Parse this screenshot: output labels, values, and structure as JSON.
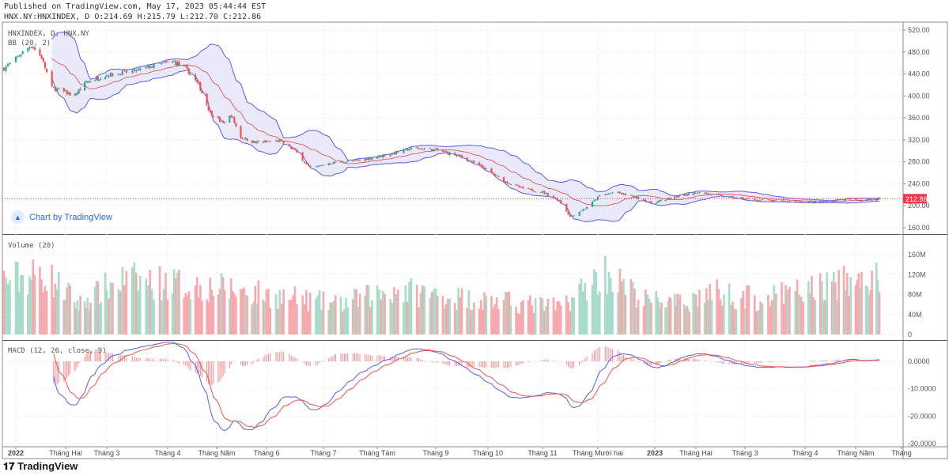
{
  "header": {
    "published": "Published on TradingView.com, May 17, 2023 05:44:44 EST",
    "ohlc": "HNX.NY:HNXINDEX, D O:214.69 H:215.79 L:212.70 C:212.86"
  },
  "legend": {
    "symbol": "HNXINDEX, D, HNX.NY",
    "bb": "BB (20, 2)",
    "volume": "Volume (20)",
    "macd": "MACD (12, 26, close, 9)"
  },
  "badge": "Chart by TradingView",
  "footer_logo": "TradingView",
  "colors": {
    "up": "#26a69a",
    "down": "#ef5350",
    "bb_band": "#5b5bf0",
    "bb_basis": "#e0454b",
    "bb_fill": "#e4e4f7",
    "macd": "#5b5bf0",
    "signal": "#ef5350",
    "last_price": "#f23645"
  },
  "chart_data": {
    "type": "candlestick",
    "last_price": "212.86",
    "price_axis": {
      "ylim": [
        150,
        530
      ],
      "ticks": [
        "520.00",
        "480.00",
        "440.00",
        "400.00",
        "360.00",
        "320.00",
        "280.00",
        "240.00",
        "200.00",
        "160.00"
      ]
    },
    "volume_axis": {
      "ylim": [
        0,
        175
      ],
      "ticks": [
        "160M",
        "120M",
        "80M",
        "40M",
        "0"
      ]
    },
    "macd_axis": {
      "ylim": [
        -31,
        7
      ],
      "ticks": [
        "0.0000",
        "-10.0000",
        "-20.0000",
        "-30.0000"
      ]
    },
    "x_ticks": [
      "2022",
      "Tháng Hai",
      "Tháng 3",
      "Tháng 4",
      "Tháng Năm",
      "Tháng 6",
      "Tháng 7",
      "Tháng Tám",
      "Tháng 9",
      "Tháng 10",
      "Tháng 11",
      "Tháng Mười hai",
      "2023",
      "Tháng Hai",
      "Tháng 3",
      "Tháng 4",
      "Tháng Năm",
      "Tháng"
    ],
    "close_keypoints": [
      [
        "2021-12-28",
        450
      ],
      [
        "2022-01-07",
        480
      ],
      [
        "2022-01-12",
        492
      ],
      [
        "2022-01-18",
        470
      ],
      [
        "2022-01-24",
        415
      ],
      [
        "2022-02-07",
        400
      ],
      [
        "2022-02-15",
        425
      ],
      [
        "2022-03-01",
        438
      ],
      [
        "2022-03-15",
        445
      ],
      [
        "2022-03-28",
        458
      ],
      [
        "2022-04-05",
        462
      ],
      [
        "2022-04-12",
        450
      ],
      [
        "2022-04-20",
        420
      ],
      [
        "2022-04-27",
        370
      ],
      [
        "2022-05-05",
        350
      ],
      [
        "2022-05-10",
        365
      ],
      [
        "2022-05-16",
        325
      ],
      [
        "2022-05-25",
        315
      ],
      [
        "2022-06-08",
        318
      ],
      [
        "2022-06-16",
        300
      ],
      [
        "2022-06-24",
        268
      ],
      [
        "2022-07-05",
        278
      ],
      [
        "2022-07-20",
        282
      ],
      [
        "2022-08-05",
        292
      ],
      [
        "2022-08-20",
        305
      ],
      [
        "2022-09-01",
        302
      ],
      [
        "2022-09-15",
        290
      ],
      [
        "2022-09-28",
        270
      ],
      [
        "2022-10-10",
        245
      ],
      [
        "2022-10-20",
        232
      ],
      [
        "2022-11-01",
        225
      ],
      [
        "2022-11-10",
        210
      ],
      [
        "2022-11-16",
        180
      ],
      [
        "2022-11-24",
        195
      ],
      [
        "2022-12-02",
        218
      ],
      [
        "2022-12-10",
        225
      ],
      [
        "2022-12-22",
        215
      ],
      [
        "2022-12-30",
        205
      ],
      [
        "2023-01-15",
        215
      ],
      [
        "2023-02-02",
        225
      ],
      [
        "2023-02-15",
        218
      ],
      [
        "2023-03-01",
        212
      ],
      [
        "2023-03-20",
        208
      ],
      [
        "2023-04-10",
        207
      ],
      [
        "2023-04-25",
        212
      ],
      [
        "2023-05-05",
        210
      ],
      [
        "2023-05-17",
        212.86
      ]
    ],
    "volume_keypoints_M": [
      [
        "2021-12-28",
        110
      ],
      [
        "2022-01-20",
        120
      ],
      [
        "2022-02-10",
        60
      ],
      [
        "2022-03-10",
        110
      ],
      [
        "2022-04-10",
        100
      ],
      [
        "2022-05-10",
        90
      ],
      [
        "2022-06-10",
        75
      ],
      [
        "2022-07-10",
        60
      ],
      [
        "2022-08-10",
        90
      ],
      [
        "2022-09-10",
        75
      ],
      [
        "2022-10-10",
        65
      ],
      [
        "2022-11-10",
        55
      ],
      [
        "2022-12-05",
        125
      ],
      [
        "2022-12-25",
        70
      ],
      [
        "2023-01-20",
        60
      ],
      [
        "2023-02-10",
        85
      ],
      [
        "2023-03-10",
        70
      ],
      [
        "2023-04-15",
        100
      ],
      [
        "2023-05-17",
        110
      ]
    ]
  }
}
